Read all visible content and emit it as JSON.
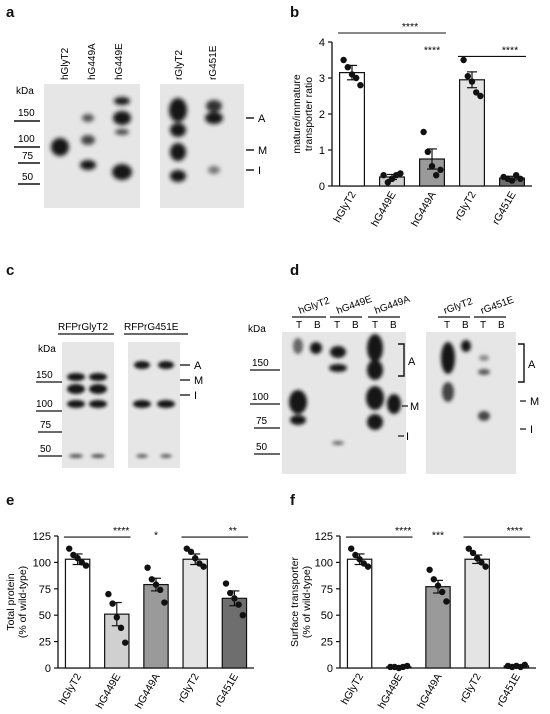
{
  "panels": {
    "a": {
      "letter": "a",
      "lanes_left": [
        "hGlyT2",
        "hG449A",
        "hG449E"
      ],
      "lanes_right": [
        "rGlyT2",
        "rG451E"
      ],
      "kda": "kDa",
      "markers": [
        "150",
        "100",
        "75",
        "50"
      ],
      "bands": [
        "A",
        "M",
        "I"
      ]
    },
    "b": {
      "letter": "b",
      "ylabel": "mature/immature transporter ratio",
      "ylabel_lines": [
        "mature/immature",
        "transporter ratio"
      ],
      "sig": [
        "****",
        "****",
        "****"
      ]
    },
    "c": {
      "letter": "c",
      "group_labels": [
        "RFPrGlyT2",
        "RFPrG451E"
      ],
      "kda": "kDa",
      "markers": [
        "150",
        "100",
        "75",
        "50"
      ],
      "bands": [
        "A",
        "M",
        "I"
      ]
    },
    "d": {
      "letter": "d",
      "group_labels": [
        "hGlyT2",
        "hG449E",
        "hG449A",
        "rGlyT2",
        "rG451E"
      ],
      "lane_letters": [
        "T",
        "B"
      ],
      "kda": "kDa",
      "markers": [
        "150",
        "100",
        "75",
        "50"
      ],
      "bands": [
        "A",
        "M",
        "I"
      ]
    },
    "e": {
      "letter": "e",
      "ylabel_lines": [
        "Total protein",
        "(% of wild-type)"
      ],
      "sig": [
        "****",
        "*",
        "**"
      ]
    },
    "f": {
      "letter": "f",
      "ylabel_lines": [
        "Surface transporter",
        "(% of wild-type)"
      ],
      "sig": [
        "****",
        "***",
        "****"
      ]
    }
  },
  "chart_data": [
    {
      "id": "b",
      "type": "bar",
      "categories": [
        "hGlyT2",
        "hG449E",
        "hG449A",
        "rGlyT2",
        "rG451E"
      ],
      "values": [
        3.15,
        0.25,
        0.75,
        2.95,
        0.22
      ],
      "errors": [
        0.2,
        0.07,
        0.28,
        0.22,
        0.05
      ],
      "points": [
        [
          3.5,
          3.3,
          3.1,
          3.0,
          2.8
        ],
        [
          0.3,
          0.1,
          0.2,
          0.3,
          0.35
        ],
        [
          1.5,
          0.95,
          0.55,
          0.3,
          0.45
        ],
        [
          3.5,
          3.05,
          2.9,
          2.6,
          2.5
        ],
        [
          0.25,
          0.2,
          0.15,
          0.3,
          0.2
        ]
      ],
      "fills": [
        "#ffffff",
        "#d0d0d0",
        "#9a9a9a",
        "#e4e4e4",
        "#6e6e6e"
      ],
      "ylim": [
        0,
        4
      ],
      "yticks": [
        "0",
        "1",
        "2",
        "3",
        "4"
      ],
      "ylabel": "mature/immature transporter ratio",
      "xlabel": ""
    },
    {
      "id": "e",
      "type": "bar",
      "categories": [
        "hGlyT2",
        "hG449E",
        "hG449A",
        "rGlyT2",
        "rG451E"
      ],
      "values": [
        103,
        51,
        79,
        103,
        66
      ],
      "errors": [
        5,
        11,
        6,
        5,
        7
      ],
      "points": [
        [
          113,
          107,
          104,
          100,
          97
        ],
        [
          70,
          61,
          48,
          38,
          24
        ],
        [
          95,
          84,
          79,
          74,
          62
        ],
        [
          113,
          110,
          104,
          99,
          96
        ],
        [
          80,
          71,
          66,
          60,
          50
        ]
      ],
      "fills": [
        "#ffffff",
        "#d0d0d0",
        "#9a9a9a",
        "#e4e4e4",
        "#6e6e6e"
      ],
      "ylim": [
        0,
        125
      ],
      "yticks": [
        "0",
        "25",
        "50",
        "75",
        "100",
        "125"
      ],
      "ylabel": "Total protein (% of wild-type)",
      "xlabel": ""
    },
    {
      "id": "f",
      "type": "bar",
      "categories": [
        "hGlyT2",
        "hG449E",
        "hG449A",
        "rGlyT2",
        "rG451E"
      ],
      "values": [
        103,
        1,
        77,
        103,
        2
      ],
      "errors": [
        5,
        0.5,
        6,
        4,
        0.5
      ],
      "points": [
        [
          113,
          107,
          103,
          99,
          96
        ],
        [
          1,
          1,
          0,
          1,
          2
        ],
        [
          93,
          84,
          78,
          72,
          63
        ],
        [
          113,
          109,
          104,
          100,
          96
        ],
        [
          2,
          1,
          2,
          1,
          3
        ]
      ],
      "fills": [
        "#ffffff",
        "#d0d0d0",
        "#9a9a9a",
        "#e4e4e4",
        "#6e6e6e"
      ],
      "ylim": [
        0,
        125
      ],
      "yticks": [
        "0",
        "25",
        "50",
        "75",
        "100",
        "125"
      ],
      "ylabel": "Surface transporter (% of wild-type)",
      "xlabel": ""
    }
  ]
}
